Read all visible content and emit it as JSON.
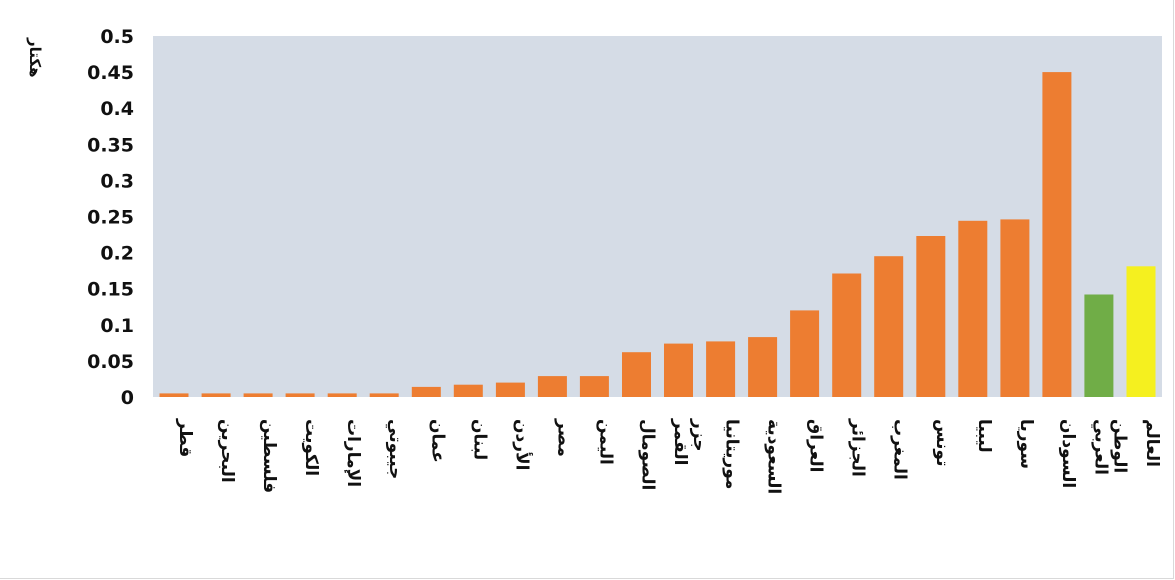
{
  "chart_data": {
    "type": "bar",
    "title": "",
    "xlabel": "",
    "ylabel": "هكتار",
    "ylim": [
      0,
      0.5
    ],
    "yticks": [
      "0",
      "0.05",
      "0.1",
      "0.15",
      "0.2",
      "0.25",
      "0.3",
      "0.35",
      "0.4",
      "0.45",
      "0.5"
    ],
    "grid": false,
    "legend": "none",
    "plot_background": "#d5dce6",
    "categories": [
      "قطر",
      "البحرين",
      "فلسطين",
      "الكويت",
      "الإمارات",
      "جيبوتي",
      "عمان",
      "لبنان",
      "الأردن",
      "مصر",
      "اليمن",
      "الصومال",
      "جزر القمر",
      "موريتانيا",
      "السعودية",
      "العراق",
      "الجزائر",
      "المغرب",
      "تونس",
      "ليبيا",
      "سوريا",
      "السودان",
      "الوطن العربي",
      "العالم"
    ],
    "values": [
      0.005,
      0.005,
      0.005,
      0.005,
      0.005,
      0.005,
      0.014,
      0.017,
      0.02,
      0.029,
      0.029,
      0.062,
      0.074,
      0.077,
      0.083,
      0.12,
      0.171,
      0.195,
      0.223,
      0.244,
      0.246,
      0.45,
      0.142,
      0.181
    ],
    "colors": [
      "#ed7d31",
      "#ed7d31",
      "#ed7d31",
      "#ed7d31",
      "#ed7d31",
      "#ed7d31",
      "#ed7d31",
      "#ed7d31",
      "#ed7d31",
      "#ed7d31",
      "#ed7d31",
      "#ed7d31",
      "#ed7d31",
      "#ed7d31",
      "#ed7d31",
      "#ed7d31",
      "#ed7d31",
      "#ed7d31",
      "#ed7d31",
      "#ed7d31",
      "#ed7d31",
      "#ed7d31",
      "#70ad47",
      "#f5f01f"
    ]
  }
}
